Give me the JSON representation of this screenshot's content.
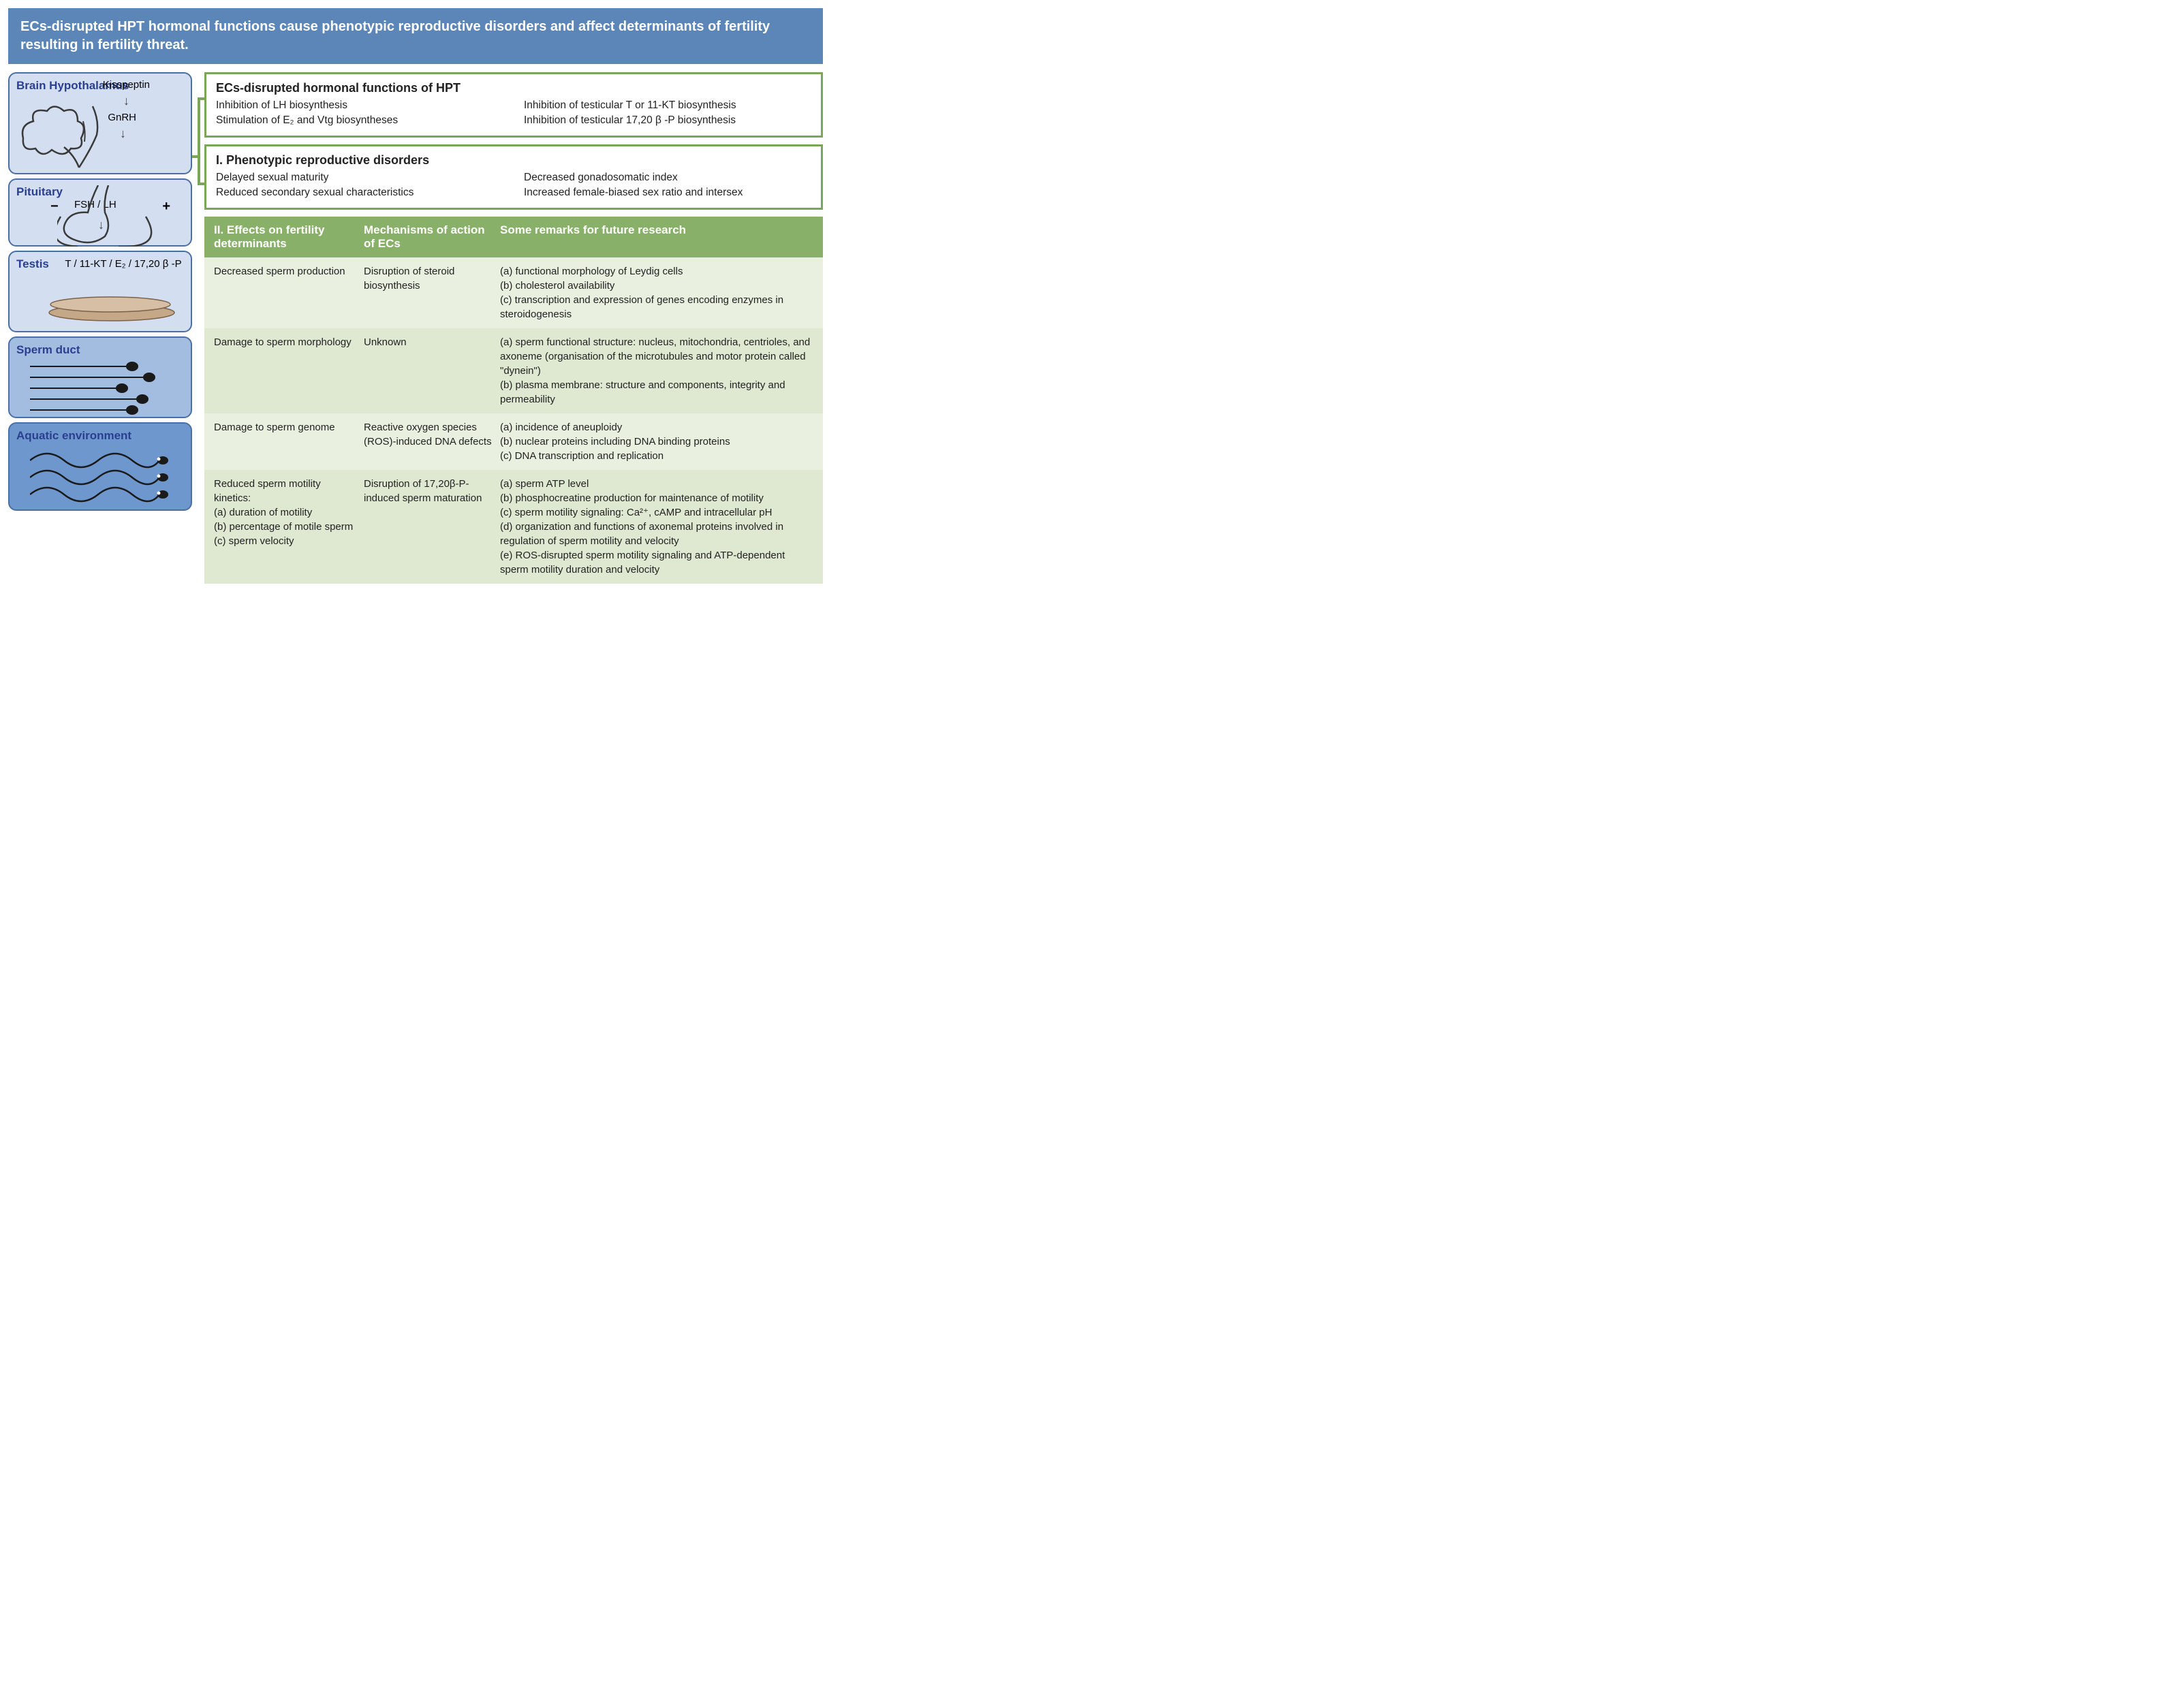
{
  "colors": {
    "header_bg": "#5c86b8",
    "header_text": "#ffffff",
    "box_border": "#4a6fa5",
    "box_light": "#d3dff0",
    "box_mid": "#a3bde0",
    "box_dark": "#6e97cd",
    "axis_title": "#2a3f8f",
    "green_border": "#7aa657",
    "table_header_bg": "#89b069",
    "row_odd": "#e9f0df",
    "row_even": "#dfe9d1"
  },
  "header": {
    "text": "ECs-disrupted HPT hormonal functions cause phenotypic reproductive disorders and affect determinants of fertility resulting in fertility threat."
  },
  "axis": {
    "brain": {
      "title": "Brain Hypothalamus",
      "kisspeptin": "Kisspeptin",
      "gnrh": "GnRH"
    },
    "pituitary": {
      "title": "Pituitary",
      "hormones": "FSH / LH",
      "minus": "−",
      "plus": "+"
    },
    "testis": {
      "title": "Testis",
      "hormones": "T / 11-KT / E₂ / 17,20 β -P"
    },
    "sperm_duct": {
      "title": "Sperm duct"
    },
    "aquatic": {
      "title": "Aquatic environment"
    }
  },
  "box_hormonal": {
    "title": "ECs-disrupted hormonal functions of HPT",
    "left": [
      "Inhibition of LH biosynthesis",
      "Stimulation of E₂ and Vtg biosyntheses"
    ],
    "right": [
      "Inhibition of testicular T or 11-KT biosynthesis",
      "Inhibition of testicular 17,20 β -P biosynthesis"
    ]
  },
  "box_phenotypic": {
    "title": "I. Phenotypic reproductive disorders",
    "left": [
      "Delayed sexual maturity",
      "Reduced secondary sexual characteristics"
    ],
    "right": [
      "Decreased gonadosomatic index",
      "Increased female-biased sex ratio and intersex"
    ]
  },
  "table": {
    "headers": {
      "c1": "II. Effects on fertility determinants",
      "c2": "Mechanisms of action of ECs",
      "c3": "Some remarks for future research"
    },
    "rows": [
      {
        "c1": "Decreased sperm production",
        "c2": "Disruption of steroid biosynthesis",
        "c3": "(a) functional morphology of Leydig cells\n(b) cholesterol availability\n(c) transcription and expression of genes encoding enzymes in steroidogenesis"
      },
      {
        "c1": "Damage to sperm morphology",
        "c2": "Unknown",
        "c3": "(a) sperm functional structure: nucleus, mitochondria, centrioles, and axoneme (organisation of the microtubules and motor protein called \"dynein\")\n(b) plasma membrane: structure and components, integrity and permeability"
      },
      {
        "c1": "Damage to sperm genome",
        "c2": "Reactive oxygen species (ROS)-induced DNA defects",
        "c3": "(a) incidence of aneuploidy\n(b) nuclear proteins including DNA binding proteins\n(c) DNA transcription and replication"
      },
      {
        "c1": "Reduced sperm motility kinetics:\n(a) duration of motility\n(b) percentage of motile sperm\n(c) sperm velocity",
        "c2": "Disruption of 17,20β-P-induced sperm maturation",
        "c3": "(a) sperm ATP level\n(b) phosphocreatine production for maintenance of motility\n(c) sperm motility signaling: Ca²⁺, cAMP and intracellular pH\n(d) organization and functions of axonemal proteins involved in regulation of sperm motility and velocity\n(e) ROS-disrupted sperm motility signaling and ATP-dependent sperm motility duration and velocity"
      }
    ]
  }
}
